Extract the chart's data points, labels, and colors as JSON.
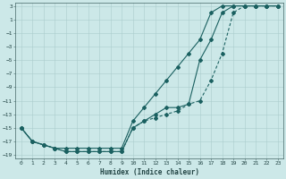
{
  "xlabel": "Humidex (Indice chaleur)",
  "xlim": [
    -0.5,
    23.5
  ],
  "ylim": [
    -19.5,
    3.5
  ],
  "yticks": [
    3,
    1,
    -1,
    -3,
    -5,
    -7,
    -9,
    -11,
    -13,
    -15,
    -17,
    -19
  ],
  "xticks": [
    0,
    1,
    2,
    3,
    4,
    5,
    6,
    7,
    8,
    9,
    10,
    11,
    12,
    13,
    14,
    15,
    16,
    17,
    18,
    19,
    20,
    21,
    22,
    23
  ],
  "bg_color": "#cce8e8",
  "grid_color": "#aacccc",
  "line_color": "#1a6060",
  "line1_x": [
    0,
    1,
    2,
    3,
    4,
    5,
    6,
    7,
    8,
    9,
    10,
    11,
    12,
    13,
    14,
    15,
    16,
    17,
    18,
    19,
    20,
    21,
    22,
    23
  ],
  "line1_y": [
    -15,
    -17,
    -17.5,
    -18,
    -18,
    -18,
    -18,
    -18,
    -18,
    -18,
    -14,
    -12,
    -10,
    -8,
    -6,
    -4,
    -2,
    2,
    3,
    3,
    3,
    3,
    3,
    3
  ],
  "line2_x": [
    0,
    1,
    2,
    3,
    4,
    5,
    6,
    7,
    8,
    9,
    10,
    11,
    12,
    13,
    14,
    15,
    16,
    17,
    18,
    19,
    20,
    21,
    22,
    23
  ],
  "line2_y": [
    -15,
    -17,
    -17.5,
    -18,
    -18.5,
    -18.5,
    -18.5,
    -18.5,
    -18.5,
    -18.5,
    -15,
    -14,
    -13.5,
    -13,
    -12.5,
    -11.5,
    -11,
    -8,
    -4,
    2,
    3,
    3,
    3,
    3
  ],
  "line3_x": [
    0,
    1,
    2,
    3,
    4,
    5,
    6,
    7,
    8,
    9,
    10,
    11,
    12,
    13,
    14,
    15,
    16,
    17,
    18,
    19,
    20,
    21,
    22,
    23
  ],
  "line3_y": [
    -15,
    -17,
    -17.5,
    -18,
    -18.5,
    -18.5,
    -18.5,
    -18.5,
    -18.5,
    -18.5,
    -15,
    -14,
    -13,
    -12,
    -12,
    -11.5,
    -5,
    -2,
    2,
    3,
    3,
    3,
    3,
    3
  ],
  "markersize": 2.0,
  "linewidth": 0.8
}
